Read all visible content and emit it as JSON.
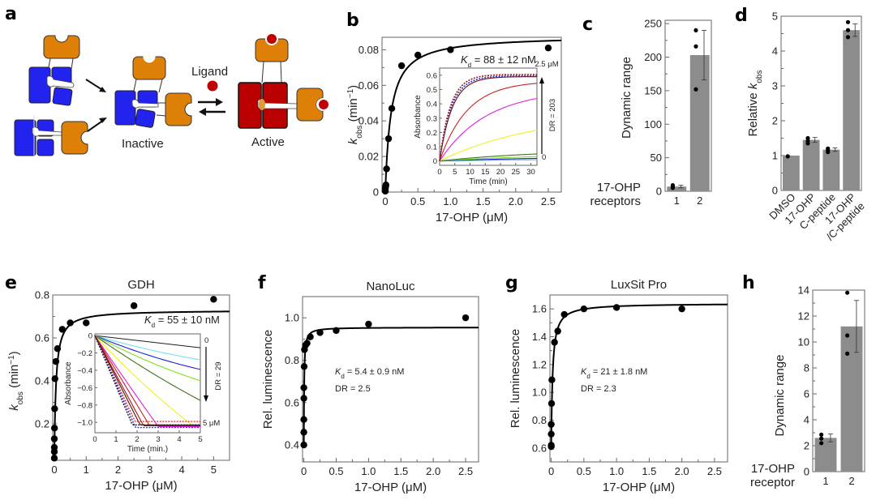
{
  "panel_labels": {
    "a": "a",
    "b": "b",
    "c": "c",
    "d": "d",
    "e": "e",
    "f": "f",
    "g": "g",
    "h": "h"
  },
  "schematic": {
    "ligand_label": "Ligand",
    "inactive_label": "Inactive",
    "active_label": "Active",
    "colors": {
      "blue": "#2323f0",
      "orange": "#de7f07",
      "red": "#bb0000",
      "ligand": "#c00000"
    }
  },
  "chart_data": [
    {
      "id": "b",
      "type": "scatter",
      "title": "",
      "xlabel": "17-OHP (μM)",
      "ylabel": "k_obs (min⁻¹)",
      "ylabel_main": "k",
      "ylabel_sub": "obs",
      "ylabel_rest": " (min",
      "ylabel_sup": "−1",
      "ylabel_close": ")",
      "xlim": [
        -0.05,
        2.7
      ],
      "ylim": [
        0,
        0.087
      ],
      "xticks": [
        0,
        0.5,
        1.0,
        1.5,
        2.0,
        2.5
      ],
      "xtick_labels": [
        "0",
        "0.5",
        "1.0",
        "1.5",
        "2.0",
        "2.5"
      ],
      "yticks": [
        0,
        0.02,
        0.04,
        0.06,
        0.08
      ],
      "ytick_labels": [
        "0",
        "0.02",
        "0.04",
        "0.06",
        "0.08"
      ],
      "points": {
        "x": [
          0,
          0,
          0,
          0.005,
          0.01,
          0.02,
          0.05,
          0.1,
          0.25,
          0.5,
          1.0,
          2.5
        ],
        "y": [
          0.0005,
          0.001,
          0.002,
          0.003,
          0.004,
          0.013,
          0.03,
          0.047,
          0.071,
          0.077,
          0.08,
          0.081
        ]
      },
      "fit": {
        "model": "hyperbolic",
        "vmax": 0.088,
        "kd": 0.088
      },
      "annotation_kd": "K",
      "annotation_kd_sub": "d",
      "annotation_kd_rest": " = 88 ± 12 nM",
      "inset": {
        "xlabel": "Time (min)",
        "ylabel": "Absorbance",
        "xlim": [
          0,
          32
        ],
        "ylim": [
          -0.03,
          0.65
        ],
        "xticks": [
          0,
          5,
          10,
          15,
          20,
          25,
          30
        ],
        "xtick_labels": [
          "0",
          "5",
          "10",
          "15",
          "20",
          "25",
          "30"
        ],
        "yticks": [
          0,
          0.1,
          0.2,
          0.3,
          0.4,
          0.5,
          0.6
        ],
        "ytick_labels": [
          "0",
          "0.1",
          "0.2",
          "0.3",
          "0.4",
          "0.5",
          "0.6"
        ],
        "top_label": "2.5 μM",
        "bottom_label": "0",
        "arrow_label": "DR = 203",
        "series": [
          {
            "color": "#40c0c0",
            "plateau": 0.015,
            "rate": 0.03,
            "dash": false
          },
          {
            "color": "#2020e0",
            "plateau": 0.03,
            "rate": 0.03,
            "dash": false
          },
          {
            "color": "#80e020",
            "plateau": 0.05,
            "rate": 0.03,
            "dash": false
          },
          {
            "color": "#407020",
            "plateau": 0.08,
            "rate": 0.03,
            "dash": false
          },
          {
            "color": "#f0f020",
            "plateau": 0.35,
            "rate": 0.03,
            "dash": false
          },
          {
            "color": "#e020e0",
            "plateau": 0.5,
            "rate": 0.065,
            "dash": false
          },
          {
            "color": "#d02020",
            "plateau": 0.56,
            "rate": 0.11,
            "dash": false
          },
          {
            "color": "#701010",
            "plateau": 0.59,
            "rate": 0.24,
            "dash": false
          },
          {
            "color": "#3030c0",
            "plateau": 0.595,
            "rate": 0.26,
            "dash": true
          },
          {
            "color": "#902020",
            "plateau": 0.605,
            "rate": 0.28,
            "dash": true
          }
        ]
      }
    },
    {
      "id": "c",
      "type": "bar",
      "ylabel": "Dynamic range",
      "xlabel_left_line1": "17-OHP",
      "xlabel_left_line2": "receptors",
      "categories": [
        "1",
        "2"
      ],
      "values": [
        7,
        203
      ],
      "errors": [
        2,
        37
      ],
      "replicates": [
        [
          5,
          7,
          9
        ],
        [
          152,
          216,
          240
        ]
      ],
      "ylim": [
        0,
        255
      ],
      "yticks": [
        0,
        50,
        100,
        150,
        200,
        250
      ],
      "ytick_labels": [
        "0",
        "50",
        "100",
        "150",
        "200",
        "250"
      ],
      "bar_color": "#8c8c8c"
    },
    {
      "id": "d",
      "type": "bar",
      "ylabel_main": "Relative ",
      "ylabel_k": "k",
      "ylabel_sub": "obs",
      "categories": [
        "DMSO",
        "17-OHP",
        "C-peptide",
        "17-OHP\n/C-peptide"
      ],
      "category_lines": [
        [
          "DMSO"
        ],
        [
          "17-OHP"
        ],
        [
          "C-peptide"
        ],
        [
          "17-OHP",
          "/C-peptide"
        ]
      ],
      "values": [
        1.0,
        1.45,
        1.17,
        4.6
      ],
      "errors": [
        0.0,
        0.07,
        0.05,
        0.18
      ],
      "replicates": [
        [
          0.98
        ],
        [
          1.35,
          1.42,
          1.5
        ],
        [
          1.1,
          1.15,
          1.2
        ],
        [
          4.4,
          4.6,
          4.83
        ]
      ],
      "ylim": [
        0,
        5
      ],
      "yticks": [
        0,
        1,
        2,
        3,
        4,
        5
      ],
      "ytick_labels": [
        "0",
        "1",
        "2",
        "3",
        "4",
        "5"
      ],
      "bar_color": "#8c8c8c"
    },
    {
      "id": "e",
      "type": "scatter",
      "title": "GDH",
      "xlabel": "17-OHP (μM)",
      "ylabel_main": "k",
      "ylabel_sub": "obs",
      "ylabel_rest": " (min",
      "ylabel_sup": "−1",
      "ylabel_close": ")",
      "xlim": [
        -0.05,
        5.5
      ],
      "ylim": [
        0.03,
        0.8
      ],
      "xticks": [
        0,
        1,
        2,
        3,
        4,
        5
      ],
      "xtick_labels": [
        "0",
        "1",
        "2",
        "3",
        "4",
        "5"
      ],
      "yticks": [
        0.2,
        0.4,
        0.6,
        0.8
      ],
      "ytick_labels": [
        "0.2",
        "0.4",
        "0.6",
        "0.8"
      ],
      "points": {
        "x": [
          0,
          0,
          0,
          0,
          0.005,
          0.01,
          0.02,
          0.05,
          0.1,
          0.25,
          0.5,
          1.0,
          2.5,
          5.0
        ],
        "y": [
          0.04,
          0.07,
          0.09,
          0.13,
          0.18,
          0.27,
          0.41,
          0.49,
          0.55,
          0.64,
          0.67,
          0.67,
          0.75,
          0.78
        ]
      },
      "fit": {
        "model": "hyperbolic",
        "y0": 0.04,
        "vmax": 0.69,
        "kd": 0.055
      },
      "annotation_kd": "K",
      "annotation_kd_sub": "d",
      "annotation_kd_rest": " = 55 ± 10 nM",
      "inset": {
        "xlabel": "Time (min.)",
        "ylabel": "Absorbance",
        "xlim": [
          0,
          5
        ],
        "ylim": [
          -1.12,
          0.02
        ],
        "xticks": [
          0,
          1,
          2,
          3,
          4,
          5
        ],
        "xtick_labels": [
          "0",
          "1",
          "2",
          "3",
          "4",
          "5"
        ],
        "yticks": [
          0,
          -0.2,
          -0.4,
          -0.6,
          -0.8,
          -1.0
        ],
        "ytick_labels": [
          "0",
          "−0.2",
          "−0.4",
          "−0.6",
          "−0.8",
          "−1.0"
        ],
        "top_label": "0",
        "bottom_label": "5 μM",
        "arrow_label": "DR = 29",
        "series": [
          {
            "color": "#202020",
            "slope": -0.028,
            "floor": -1.05,
            "dash": false
          },
          {
            "color": "#70e0f0",
            "slope": -0.07,
            "floor": -1.05,
            "dash": false,
            "curve": 0.2
          },
          {
            "color": "#2020e0",
            "slope": -0.1,
            "floor": -1.05,
            "dash": false,
            "curve": 0.22
          },
          {
            "color": "#80e020",
            "slope": -0.13,
            "floor": -1.05,
            "dash": false,
            "curve": 0.2
          },
          {
            "color": "#407020",
            "slope": -0.17,
            "floor": -1.05,
            "dash": false,
            "curve": 0.12
          },
          {
            "color": "#f0f020",
            "slope": -0.26,
            "floor": -1.05,
            "dash": false,
            "curve": 0.15
          },
          {
            "color": "#e020e0",
            "slope": -0.36,
            "floor": -1.05,
            "dash": false,
            "curve": 0.05
          },
          {
            "color": "#d02020",
            "slope": -0.4,
            "floor": -1.04,
            "dash": false,
            "curve": 0.0
          },
          {
            "color": "#b01010",
            "slope": -0.45,
            "floor": -1.04,
            "dash": false,
            "curve": 0.0
          },
          {
            "color": "#401010",
            "slope": -0.48,
            "floor": -1.03,
            "dash": false,
            "curve": 0.0
          },
          {
            "color": "#e03030",
            "slope": -0.52,
            "floor": -0.99,
            "dash": true,
            "curve": 0.0
          },
          {
            "color": "#3030e0",
            "slope": -0.55,
            "floor": -1.06,
            "dash": true,
            "curve": 0.0
          },
          {
            "color": "#202020",
            "slope": -0.58,
            "floor": -1.03,
            "dash": true,
            "curve": 0.0
          }
        ]
      }
    },
    {
      "id": "f",
      "type": "scatter",
      "title": "NanoLuc",
      "xlabel": "17-OHP (μM)",
      "ylabel": "Rel. luminescence",
      "xlim": [
        -0.02,
        2.7
      ],
      "ylim": [
        0.32,
        1.1
      ],
      "xticks": [
        0,
        0.5,
        1.0,
        1.5,
        2.0,
        2.5
      ],
      "xtick_labels": [
        "0",
        "0.5",
        "1.0",
        "1.5",
        "2.0",
        "2.5"
      ],
      "yticks": [
        0.4,
        0.6,
        0.8,
        1.0
      ],
      "ytick_labels": [
        "0.4",
        "0.6",
        "0.8",
        "1.0"
      ],
      "points": {
        "x": [
          0,
          0,
          0,
          0,
          0,
          0.005,
          0.01,
          0.025,
          0.05,
          0.1,
          0.25,
          0.5,
          1.0,
          2.5
        ],
        "y": [
          0.4,
          0.46,
          0.52,
          0.62,
          0.67,
          0.77,
          0.85,
          0.87,
          0.88,
          0.91,
          0.93,
          0.94,
          0.97,
          1.0
        ]
      },
      "fit": {
        "model": "hyperbolic",
        "y0": 0.4,
        "vmax": 0.555,
        "kd": 0.0054
      },
      "annotation_kd": "K",
      "annotation_kd_sub": "d",
      "annotation_kd_rest": " = 5.4 ± 0.9 nM",
      "annotation_dr": "DR = 2.5"
    },
    {
      "id": "g",
      "type": "scatter",
      "title": "LuxSit Pro",
      "xlabel": "17-OHP (μM)",
      "ylabel": "Rel. luminescence",
      "xlim": [
        -0.02,
        2.7
      ],
      "ylim": [
        0.5,
        1.7
      ],
      "xticks": [
        0,
        0.5,
        1.0,
        1.5,
        2.0,
        2.5
      ],
      "xtick_labels": [
        "0",
        "0.5",
        "1.0",
        "1.5",
        "2.0",
        "2.5"
      ],
      "yticks": [
        0.6,
        0.8,
        1.0,
        1.2,
        1.4,
        1.6
      ],
      "ytick_labels": [
        "0.6",
        "0.8",
        "1.0",
        "1.2",
        "1.4",
        "1.6"
      ],
      "points": {
        "x": [
          0,
          0,
          0,
          0,
          0.005,
          0.01,
          0.05,
          0.1,
          0.2,
          0.5,
          1.0,
          2.0
        ],
        "y": [
          0.61,
          0.62,
          0.7,
          0.77,
          0.92,
          1.09,
          1.36,
          1.44,
          1.56,
          1.6,
          1.61,
          1.6
        ]
      },
      "fit": {
        "model": "hyperbolic",
        "y0": 0.6,
        "vmax": 1.04,
        "kd": 0.021
      },
      "annotation_kd": "K",
      "annotation_kd_sub": "d",
      "annotation_kd_rest": " = 21 ± 1.8 nM",
      "annotation_dr": "DR = 2.3"
    },
    {
      "id": "h",
      "type": "bar",
      "ylabel": "Dynamic range",
      "xlabel_left_line1": "17-OHP",
      "xlabel_left_line2": "receptor",
      "categories": [
        "1",
        "2"
      ],
      "values": [
        2.6,
        11.2
      ],
      "errors": [
        0.3,
        2.0
      ],
      "replicates": [
        [
          2.2,
          2.55,
          2.85
        ],
        [
          9.1,
          10.5,
          13.8
        ]
      ],
      "ylim": [
        0,
        14
      ],
      "yticks": [
        0,
        2,
        4,
        6,
        8,
        10,
        12,
        14
      ],
      "ytick_labels": [
        "0",
        "2",
        "4",
        "6",
        "8",
        "10",
        "12",
        "14"
      ],
      "bar_color": "#8c8c8c"
    }
  ]
}
